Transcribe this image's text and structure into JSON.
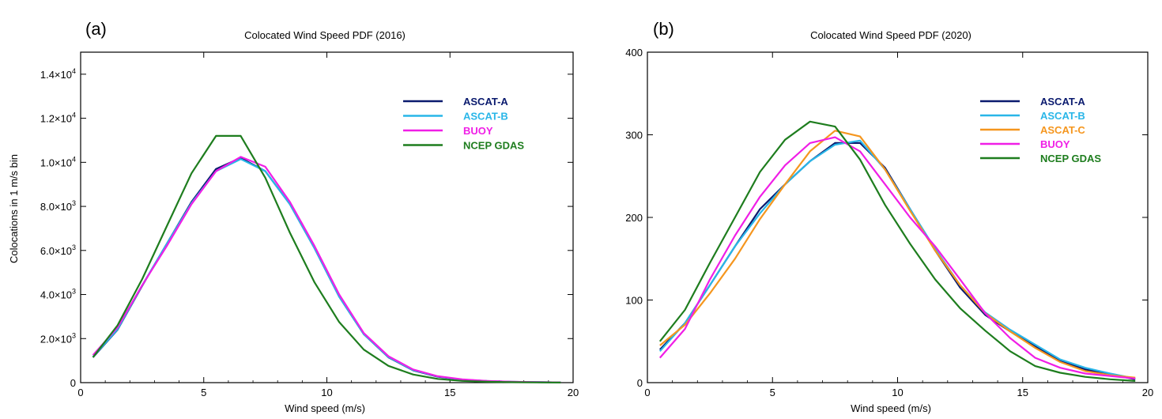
{
  "chart_data": [
    {
      "type": "line",
      "panel_label": "(a)",
      "title": "Colocated Wind Speed PDF (2016)",
      "xlabel": "Wind speed (m/s)",
      "ylabel": "Colocations in 1 m/s bin",
      "xlim": [
        0,
        20
      ],
      "ylim": [
        0,
        15000
      ],
      "x_ticks": [
        0,
        5,
        10,
        15,
        20
      ],
      "y_ticks": [
        {
          "value": 0,
          "mant": "0",
          "exp": ""
        },
        {
          "value": 2000,
          "mant": "2.0×10",
          "exp": "3"
        },
        {
          "value": 4000,
          "mant": "4.0×10",
          "exp": "3"
        },
        {
          "value": 6000,
          "mant": "6.0×10",
          "exp": "3"
        },
        {
          "value": 8000,
          "mant": "8.0×10",
          "exp": "3"
        },
        {
          "value": 10000,
          "mant": "1.0×10",
          "exp": "4"
        },
        {
          "value": 12000,
          "mant": "1.2×10",
          "exp": "4"
        },
        {
          "value": 14000,
          "mant": "1.4×10",
          "exp": "4"
        }
      ],
      "legend_position": "top-right",
      "x": [
        0.5,
        1.5,
        2.5,
        3.5,
        4.5,
        5.5,
        6.5,
        7.5,
        8.5,
        9.5,
        10.5,
        11.5,
        12.5,
        13.5,
        14.5,
        15.5,
        16.5,
        17.5,
        18.5,
        19.5
      ],
      "series": [
        {
          "name": "ASCAT-A",
          "color": "#0a1a6e",
          "values": [
            1150,
            2400,
            4400,
            6300,
            8200,
            9700,
            10200,
            9600,
            8100,
            6100,
            3900,
            2200,
            1150,
            560,
            270,
            130,
            70,
            35,
            20,
            10
          ]
        },
        {
          "name": "ASCAT-B",
          "color": "#29b6e8",
          "values": [
            1170,
            2420,
            4420,
            6300,
            8150,
            9600,
            10150,
            9600,
            8100,
            6100,
            3900,
            2200,
            1160,
            570,
            280,
            135,
            72,
            36,
            21,
            11
          ]
        },
        {
          "name": "BUOY",
          "color": "#f01ee6",
          "values": [
            1250,
            2500,
            4420,
            6200,
            8100,
            9600,
            10250,
            9800,
            8200,
            6200,
            4000,
            2250,
            1200,
            600,
            290,
            150,
            80,
            40,
            22,
            12
          ]
        },
        {
          "name": "NCEP GDAS",
          "color": "#1e7d1e",
          "values": [
            1150,
            2600,
            4700,
            7100,
            9500,
            11200,
            11200,
            9300,
            6800,
            4550,
            2750,
            1500,
            760,
            370,
            170,
            80,
            40,
            20,
            10,
            5
          ]
        }
      ]
    },
    {
      "type": "line",
      "panel_label": "(b)",
      "title": "Colocated Wind Speed PDF (2020)",
      "xlabel": "Wind speed (m/s)",
      "ylabel": "",
      "xlim": [
        0,
        20
      ],
      "ylim": [
        0,
        400
      ],
      "x_ticks": [
        0,
        5,
        10,
        15,
        20
      ],
      "y_ticks": [
        {
          "value": 0,
          "mant": "0",
          "exp": ""
        },
        {
          "value": 100,
          "mant": "100",
          "exp": ""
        },
        {
          "value": 200,
          "mant": "200",
          "exp": ""
        },
        {
          "value": 300,
          "mant": "300",
          "exp": ""
        },
        {
          "value": 400,
          "mant": "400",
          "exp": ""
        }
      ],
      "legend_position": "top-right",
      "x": [
        0.5,
        1.5,
        2.5,
        3.5,
        4.5,
        5.5,
        6.5,
        7.5,
        8.5,
        9.5,
        10.5,
        11.5,
        12.5,
        13.5,
        14.5,
        15.5,
        16.5,
        17.5,
        18.5,
        19.5
      ],
      "series": [
        {
          "name": "ASCAT-A",
          "color": "#0a1a6e",
          "values": [
            40,
            72,
            118,
            165,
            210,
            240,
            268,
            290,
            290,
            260,
            210,
            160,
            115,
            82,
            62,
            44,
            26,
            16,
            10,
            4
          ]
        },
        {
          "name": "ASCAT-B",
          "color": "#29b6e8",
          "values": [
            38,
            72,
            118,
            165,
            205,
            240,
            268,
            288,
            293,
            258,
            210,
            162,
            118,
            85,
            64,
            46,
            28,
            18,
            11,
            5
          ]
        },
        {
          "name": "ASCAT-C",
          "color": "#f5961e",
          "values": [
            45,
            70,
            108,
            150,
            198,
            240,
            280,
            305,
            298,
            258,
            208,
            160,
            118,
            84,
            62,
            42,
            25,
            14,
            9,
            6
          ]
        },
        {
          "name": "BUOY",
          "color": "#f01ee6",
          "values": [
            30,
            65,
            125,
            178,
            225,
            263,
            290,
            297,
            280,
            240,
            200,
            165,
            125,
            84,
            54,
            30,
            18,
            11,
            8,
            5
          ]
        },
        {
          "name": "NCEP GDAS",
          "color": "#1e7d1e",
          "values": [
            50,
            88,
            145,
            200,
            255,
            294,
            316,
            310,
            270,
            215,
            168,
            125,
            90,
            63,
            38,
            20,
            12,
            7,
            4,
            2
          ]
        }
      ]
    }
  ]
}
